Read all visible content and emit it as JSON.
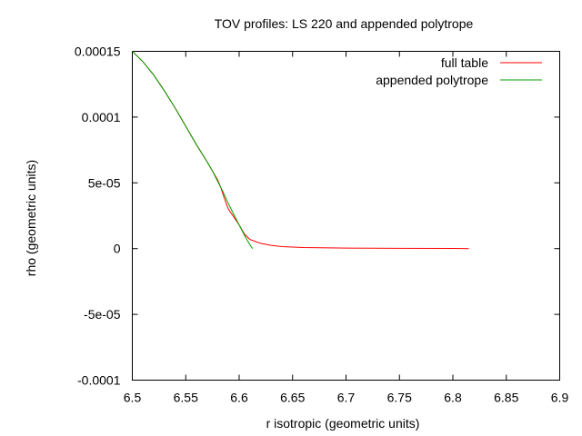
{
  "chart_data": {
    "type": "line",
    "title": "TOV profiles: LS 220 and appended polytrope",
    "xlabel": "r isotropic (geometric units)",
    "ylabel": "rho (geometric units)",
    "xlim": [
      6.5,
      6.9
    ],
    "ylim": [
      -0.0001,
      0.00015
    ],
    "grid": false,
    "legend_position": "top-right",
    "x_ticks": [
      {
        "value": 6.5,
        "label": "6.5"
      },
      {
        "value": 6.55,
        "label": "6.55"
      },
      {
        "value": 6.6,
        "label": "6.6"
      },
      {
        "value": 6.65,
        "label": "6.65"
      },
      {
        "value": 6.7,
        "label": "6.7"
      },
      {
        "value": 6.75,
        "label": "6.75"
      },
      {
        "value": 6.8,
        "label": "6.8"
      },
      {
        "value": 6.85,
        "label": "6.85"
      },
      {
        "value": 6.9,
        "label": "6.9"
      }
    ],
    "y_ticks": [
      {
        "value": 0.00015,
        "label": "0.00015"
      },
      {
        "value": 0.0001,
        "label": "0.0001"
      },
      {
        "value": 5e-05,
        "label": "5e-05"
      },
      {
        "value": 0,
        "label": "0"
      },
      {
        "value": -5e-05,
        "label": "-5e-05"
      },
      {
        "value": -0.0001,
        "label": "-0.0001"
      }
    ],
    "series": [
      {
        "name": "full table",
        "color": "#ff0000",
        "x": [
          6.5,
          6.51,
          6.52,
          6.53,
          6.54,
          6.55,
          6.56,
          6.57,
          6.575,
          6.58,
          6.583,
          6.585,
          6.588,
          6.59,
          6.595,
          6.6,
          6.605,
          6.61,
          6.615,
          6.62,
          6.63,
          6.64,
          6.66,
          6.7,
          6.75,
          6.8,
          6.815
        ],
        "y": [
          0.00015,
          0.000142,
          0.000132,
          0.00012,
          0.000107,
          9.3e-05,
          7.9e-05,
          6.6e-05,
          5.9e-05,
          5.2e-05,
          4.6e-05,
          4.1e-05,
          3.4e-05,
          3e-05,
          2.4e-05,
          1.8e-05,
          1.1e-05,
          7e-06,
          5.5e-06,
          4e-06,
          2.5e-06,
          1.5e-06,
          8e-07,
          4e-07,
          2e-07,
          1e-07,
          0.0
        ]
      },
      {
        "name": "appended polytrope",
        "color": "#00a000",
        "x": [
          6.5,
          6.51,
          6.52,
          6.53,
          6.54,
          6.55,
          6.56,
          6.57,
          6.575,
          6.58,
          6.585,
          6.59,
          6.595,
          6.6,
          6.605,
          6.61,
          6.6125
        ],
        "y": [
          0.00015,
          0.000142,
          0.000132,
          0.00012,
          0.000107,
          9.3e-05,
          7.9e-05,
          6.6e-05,
          5.9e-05,
          5.1e-05,
          4.3e-05,
          3.4e-05,
          2.6e-05,
          1.8e-05,
          1e-05,
          3e-06,
          0.0
        ]
      }
    ]
  }
}
